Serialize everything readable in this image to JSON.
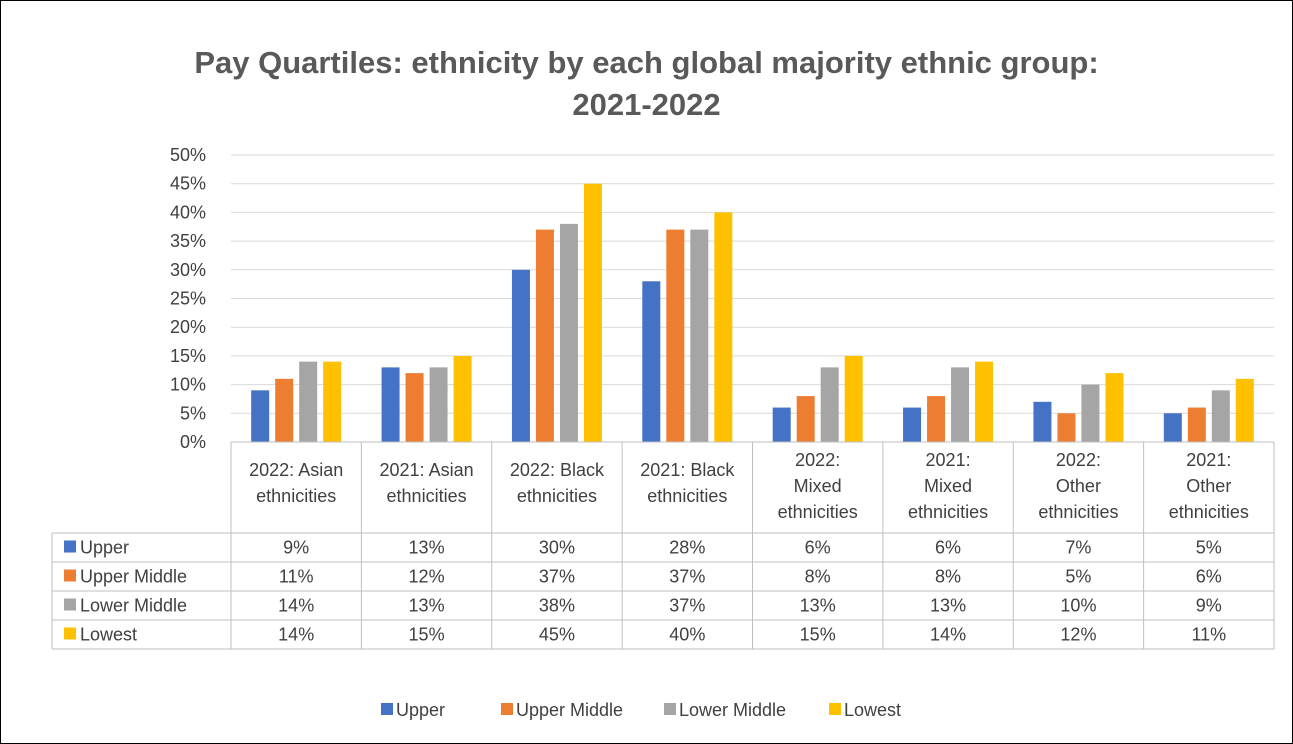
{
  "chart_data": {
    "type": "bar",
    "title": "Pay Quartiles: ethnicity by each global majority ethnic group: 2021-2022",
    "title_lines": [
      "Pay Quartiles: ethnicity by each global majority ethnic group:",
      "2021-2022"
    ],
    "categories": [
      [
        "2022: Asian",
        "ethnicities"
      ],
      [
        "2021: Asian",
        "ethnicities"
      ],
      [
        "2022: Black",
        "ethnicities"
      ],
      [
        "2021: Black",
        "ethnicities"
      ],
      [
        "2022:",
        "Mixed",
        "ethnicities"
      ],
      [
        "2021:",
        "Mixed",
        "ethnicities"
      ],
      [
        "2022:",
        "Other",
        "ethnicities"
      ],
      [
        "2021:",
        "Other",
        "ethnicities"
      ]
    ],
    "series": [
      {
        "name": "Upper",
        "color": "#4472c4",
        "values": [
          9,
          13,
          30,
          28,
          6,
          6,
          7,
          5
        ]
      },
      {
        "name": "Upper Middle",
        "color": "#ed7d31",
        "values": [
          11,
          12,
          37,
          37,
          8,
          8,
          5,
          6
        ]
      },
      {
        "name": "Lower Middle",
        "color": "#a5a5a5",
        "values": [
          14,
          13,
          38,
          37,
          13,
          13,
          10,
          9
        ]
      },
      {
        "name": "Lowest",
        "color": "#ffc000",
        "values": [
          14,
          15,
          45,
          40,
          15,
          14,
          12,
          11
        ]
      }
    ],
    "ylim": [
      0,
      50
    ],
    "yticks": [
      "0%",
      "5%",
      "10%",
      "15%",
      "20%",
      "25%",
      "30%",
      "35%",
      "40%",
      "45%",
      "50%"
    ],
    "grid": true,
    "data_table": true,
    "legend": "bottom"
  }
}
